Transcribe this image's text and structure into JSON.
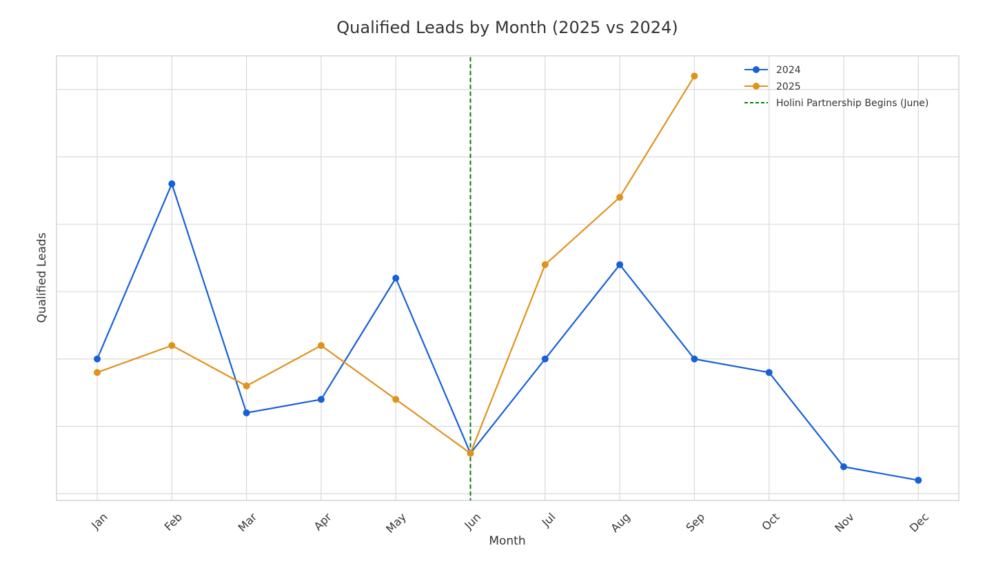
{
  "chart_data": {
    "type": "line",
    "title": "Qualified Leads by Month (2025 vs 2024)",
    "xlabel": "Month",
    "ylabel": "Qualified Leads",
    "categories": [
      "Jan",
      "Feb",
      "Mar",
      "Apr",
      "May",
      "Jun",
      "Jul",
      "Aug",
      "Sep",
      "Oct",
      "Nov",
      "Dec"
    ],
    "series": [
      {
        "name": "2024",
        "color": "#1660d8",
        "values": [
          10,
          23,
          6,
          7,
          16,
          3,
          10,
          17,
          10,
          9,
          2,
          1
        ]
      },
      {
        "name": "2025",
        "color": "#e0921c",
        "values": [
          9,
          11,
          8,
          11,
          7,
          3,
          17,
          22,
          31,
          null,
          null,
          null
        ]
      }
    ],
    "reference_line": {
      "label": "Holini Partnership Begins (June)",
      "at": "Jun",
      "color": "#008000",
      "style": "dashed"
    },
    "ylim": [
      -0.5,
      32.5
    ],
    "y_ticks_labeled": false,
    "grid": true,
    "legend_position": "top-right"
  }
}
